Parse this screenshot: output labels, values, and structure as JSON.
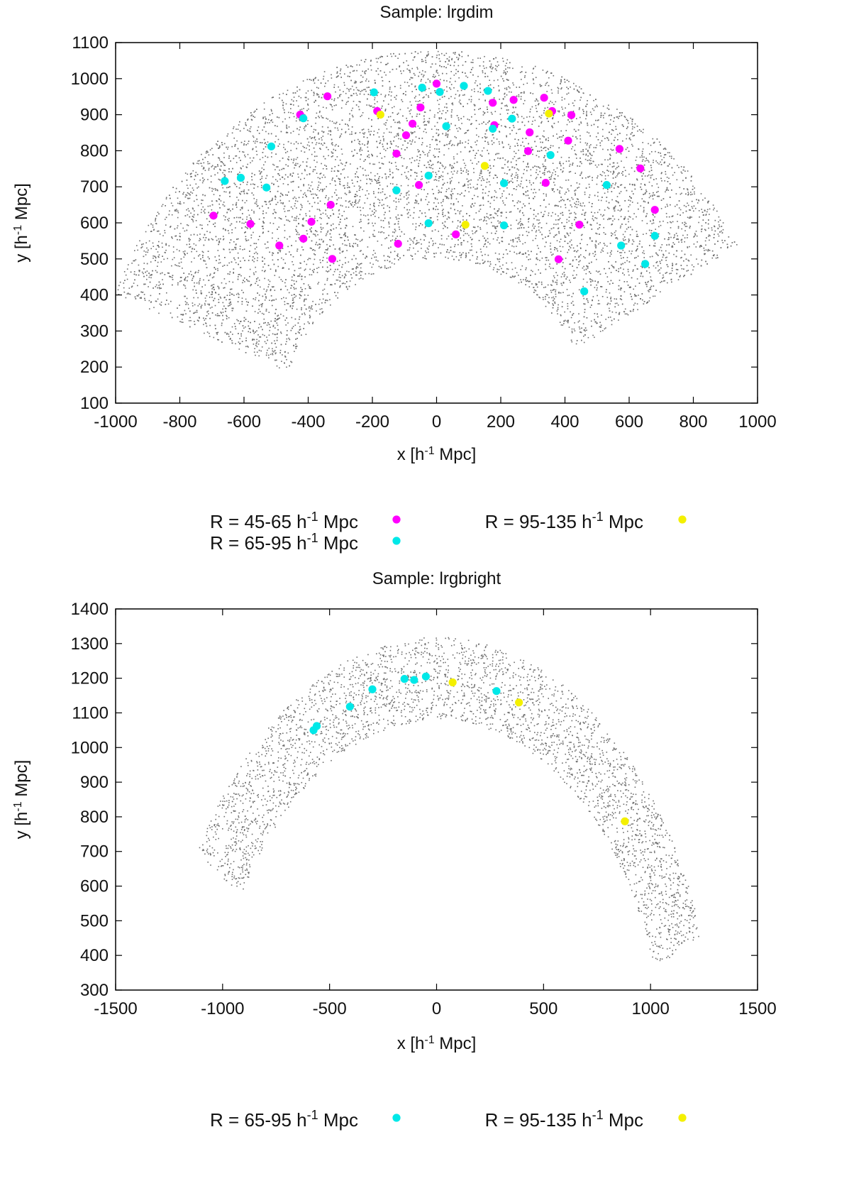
{
  "chart_data": [
    {
      "type": "scatter",
      "title": "Sample: lrgdim",
      "xlabel": "x [h",
      "xlabel_sup": "-1",
      "xlabel_tail": " Mpc]",
      "ylabel": "y [h",
      "ylabel_sup": "-1",
      "ylabel_tail": " Mpc]",
      "xlim": [
        -1000,
        1000
      ],
      "ylim": [
        100,
        1100
      ],
      "xticks": [
        -1000,
        -800,
        -600,
        -400,
        -200,
        0,
        200,
        400,
        600,
        800,
        1000
      ],
      "yticks": [
        100,
        200,
        300,
        400,
        500,
        600,
        700,
        800,
        900,
        1000,
        1100
      ],
      "grid": false,
      "legend_position": "below",
      "background_points": {
        "name": "",
        "color": "#6e6e6e",
        "shape": "annular sector",
        "r_inner": 500,
        "r_outer": 1080,
        "angle_deg_min": 30,
        "angle_deg_max": 158
      },
      "series": [
        {
          "name": "R = 45-65 h",
          "name_sup": "-1",
          "name_tail": " Mpc",
          "color": "#ff00ff",
          "points": [
            [
              -695,
              620
            ],
            [
              -580,
              597
            ],
            [
              -490,
              537
            ],
            [
              -425,
              900
            ],
            [
              -415,
              556
            ],
            [
              -390,
              603
            ],
            [
              -340,
              951
            ],
            [
              -330,
              650
            ],
            [
              -325,
              500
            ],
            [
              -185,
              910
            ],
            [
              -125,
              792
            ],
            [
              -120,
              542
            ],
            [
              -95,
              843
            ],
            [
              -75,
              875
            ],
            [
              -55,
              705
            ],
            [
              -50,
              920
            ],
            [
              0,
              986
            ],
            [
              60,
              568
            ],
            [
              175,
              933
            ],
            [
              180,
              871
            ],
            [
              240,
              941
            ],
            [
              285,
              799
            ],
            [
              290,
              851
            ],
            [
              335,
              947
            ],
            [
              340,
              711
            ],
            [
              360,
              910
            ],
            [
              410,
              828
            ],
            [
              420,
              899
            ],
            [
              445,
              595
            ],
            [
              380,
              499
            ],
            [
              570,
              805
            ],
            [
              635,
              751
            ],
            [
              680,
              636
            ]
          ]
        },
        {
          "name": "R = 65-95 h",
          "name_sup": "-1",
          "name_tail": " Mpc",
          "color": "#00e8e8",
          "points": [
            [
              -660,
              716
            ],
            [
              -610,
              725
            ],
            [
              -530,
              698
            ],
            [
              -515,
              812
            ],
            [
              -415,
              890
            ],
            [
              -195,
              962
            ],
            [
              -125,
              690
            ],
            [
              -45,
              975
            ],
            [
              -25,
              731
            ],
            [
              -25,
              599
            ],
            [
              10,
              963
            ],
            [
              30,
              868
            ],
            [
              85,
              980
            ],
            [
              160,
              966
            ],
            [
              175,
              861
            ],
            [
              210,
              710
            ],
            [
              210,
              593
            ],
            [
              235,
              889
            ],
            [
              355,
              788
            ],
            [
              460,
              410
            ],
            [
              530,
              705
            ],
            [
              575,
              537
            ],
            [
              650,
              486
            ],
            [
              680,
              564
            ]
          ]
        },
        {
          "name": "R = 95-135 h",
          "name_sup": "-1",
          "name_tail": " Mpc",
          "color": "#f4f000",
          "points": [
            [
              -175,
              900
            ],
            [
              90,
              595
            ],
            [
              150,
              758
            ],
            [
              350,
              903
            ]
          ]
        }
      ]
    },
    {
      "type": "scatter",
      "title": "Sample: lrgbright",
      "xlabel": "x [h",
      "xlabel_sup": "-1",
      "xlabel_tail": " Mpc]",
      "ylabel": "y [h",
      "ylabel_sup": "-1",
      "ylabel_tail": " Mpc]",
      "xlim": [
        -1500,
        1500
      ],
      "ylim": [
        300,
        1400
      ],
      "xticks": [
        -1500,
        -1000,
        -500,
        0,
        500,
        1000,
        1500
      ],
      "yticks": [
        300,
        400,
        500,
        600,
        700,
        800,
        900,
        1000,
        1100,
        1200,
        1300,
        1400
      ],
      "grid": false,
      "legend_position": "below",
      "background_points": {
        "name": "",
        "color": "#6e6e6e",
        "shape": "annular sector",
        "r_inner": 1080,
        "r_outer": 1320,
        "angle_deg_min": 20,
        "angle_deg_max": 148
      },
      "series": [
        {
          "name": "R = 65-95 h",
          "name_sup": "-1",
          "name_tail": " Mpc",
          "color": "#00e8e8",
          "points": [
            [
              -575,
              1050
            ],
            [
              -560,
              1062
            ],
            [
              -405,
              1118
            ],
            [
              -300,
              1168
            ],
            [
              -150,
              1198
            ],
            [
              -105,
              1195
            ],
            [
              -50,
              1205
            ],
            [
              280,
              1163
            ]
          ]
        },
        {
          "name": "R = 95-135 h",
          "name_sup": "-1",
          "name_tail": " Mpc",
          "color": "#f4f000",
          "points": [
            [
              75,
              1188
            ],
            [
              385,
              1130
            ],
            [
              880,
              787
            ]
          ]
        }
      ]
    }
  ]
}
